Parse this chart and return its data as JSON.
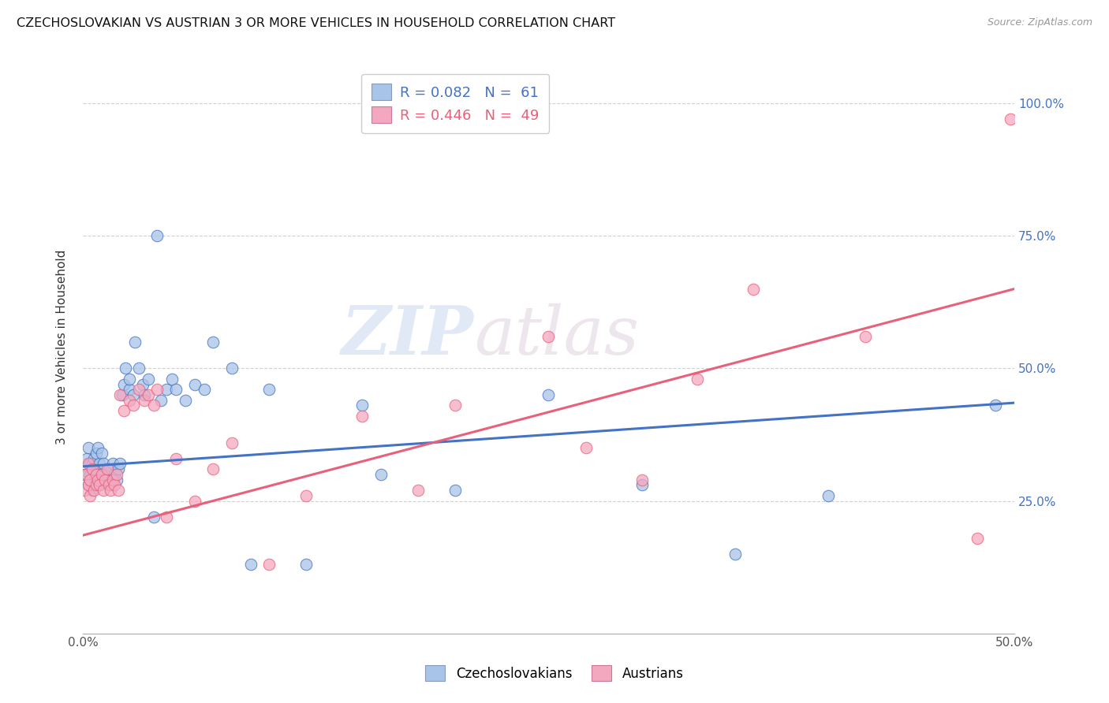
{
  "title": "CZECHOSLOVAKIAN VS AUSTRIAN 3 OR MORE VEHICLES IN HOUSEHOLD CORRELATION CHART",
  "source": "Source: ZipAtlas.com",
  "ylabel": "3 or more Vehicles in Household",
  "xlim": [
    0.0,
    0.5
  ],
  "ylim": [
    0.0,
    1.08
  ],
  "ytick_positions": [
    0.25,
    0.5,
    0.75,
    1.0
  ],
  "ytick_labels": [
    "25.0%",
    "50.0%",
    "75.0%",
    "100.0%"
  ],
  "xtick_positions": [
    0.0,
    0.1,
    0.2,
    0.3,
    0.4,
    0.5
  ],
  "xtick_labels": [
    "0.0%",
    "",
    "",
    "",
    "",
    "50.0%"
  ],
  "color_czech": "#a8c4e8",
  "color_austrian": "#f4a8c0",
  "line_color_czech": "#4472c4",
  "line_color_austrian": "#e8607a",
  "watermark_zip": "ZIP",
  "watermark_atlas": "atlas",
  "czech_x": [
    0.001,
    0.002,
    0.003,
    0.003,
    0.004,
    0.004,
    0.005,
    0.005,
    0.006,
    0.006,
    0.007,
    0.007,
    0.008,
    0.008,
    0.009,
    0.009,
    0.01,
    0.01,
    0.011,
    0.012,
    0.013,
    0.014,
    0.015,
    0.016,
    0.017,
    0.018,
    0.019,
    0.02,
    0.021,
    0.022,
    0.023,
    0.025,
    0.025,
    0.027,
    0.028,
    0.03,
    0.032,
    0.033,
    0.035,
    0.038,
    0.04,
    0.042,
    0.045,
    0.048,
    0.05,
    0.055,
    0.06,
    0.065,
    0.07,
    0.08,
    0.09,
    0.1,
    0.12,
    0.15,
    0.16,
    0.2,
    0.25,
    0.3,
    0.35,
    0.4,
    0.49
  ],
  "czech_y": [
    0.3,
    0.33,
    0.28,
    0.35,
    0.3,
    0.32,
    0.27,
    0.32,
    0.31,
    0.33,
    0.29,
    0.34,
    0.3,
    0.35,
    0.28,
    0.32,
    0.3,
    0.34,
    0.32,
    0.3,
    0.29,
    0.31,
    0.28,
    0.32,
    0.3,
    0.29,
    0.31,
    0.32,
    0.45,
    0.47,
    0.5,
    0.46,
    0.48,
    0.45,
    0.55,
    0.5,
    0.47,
    0.45,
    0.48,
    0.22,
    0.75,
    0.44,
    0.46,
    0.48,
    0.46,
    0.44,
    0.47,
    0.46,
    0.55,
    0.5,
    0.13,
    0.46,
    0.13,
    0.43,
    0.3,
    0.27,
    0.45,
    0.28,
    0.15,
    0.26,
    0.43
  ],
  "austrian_x": [
    0.001,
    0.002,
    0.003,
    0.003,
    0.004,
    0.004,
    0.005,
    0.006,
    0.007,
    0.007,
    0.008,
    0.009,
    0.01,
    0.011,
    0.012,
    0.013,
    0.014,
    0.015,
    0.016,
    0.017,
    0.018,
    0.019,
    0.02,
    0.022,
    0.025,
    0.027,
    0.03,
    0.033,
    0.035,
    0.038,
    0.04,
    0.045,
    0.05,
    0.06,
    0.07,
    0.08,
    0.1,
    0.12,
    0.15,
    0.18,
    0.2,
    0.25,
    0.27,
    0.3,
    0.33,
    0.36,
    0.42,
    0.48,
    0.498
  ],
  "austrian_y": [
    0.27,
    0.3,
    0.28,
    0.32,
    0.26,
    0.29,
    0.31,
    0.27,
    0.28,
    0.3,
    0.29,
    0.28,
    0.3,
    0.27,
    0.29,
    0.31,
    0.28,
    0.27,
    0.29,
    0.28,
    0.3,
    0.27,
    0.45,
    0.42,
    0.44,
    0.43,
    0.46,
    0.44,
    0.45,
    0.43,
    0.46,
    0.22,
    0.33,
    0.25,
    0.31,
    0.36,
    0.13,
    0.26,
    0.41,
    0.27,
    0.43,
    0.56,
    0.35,
    0.29,
    0.48,
    0.65,
    0.56,
    0.18,
    0.97
  ]
}
